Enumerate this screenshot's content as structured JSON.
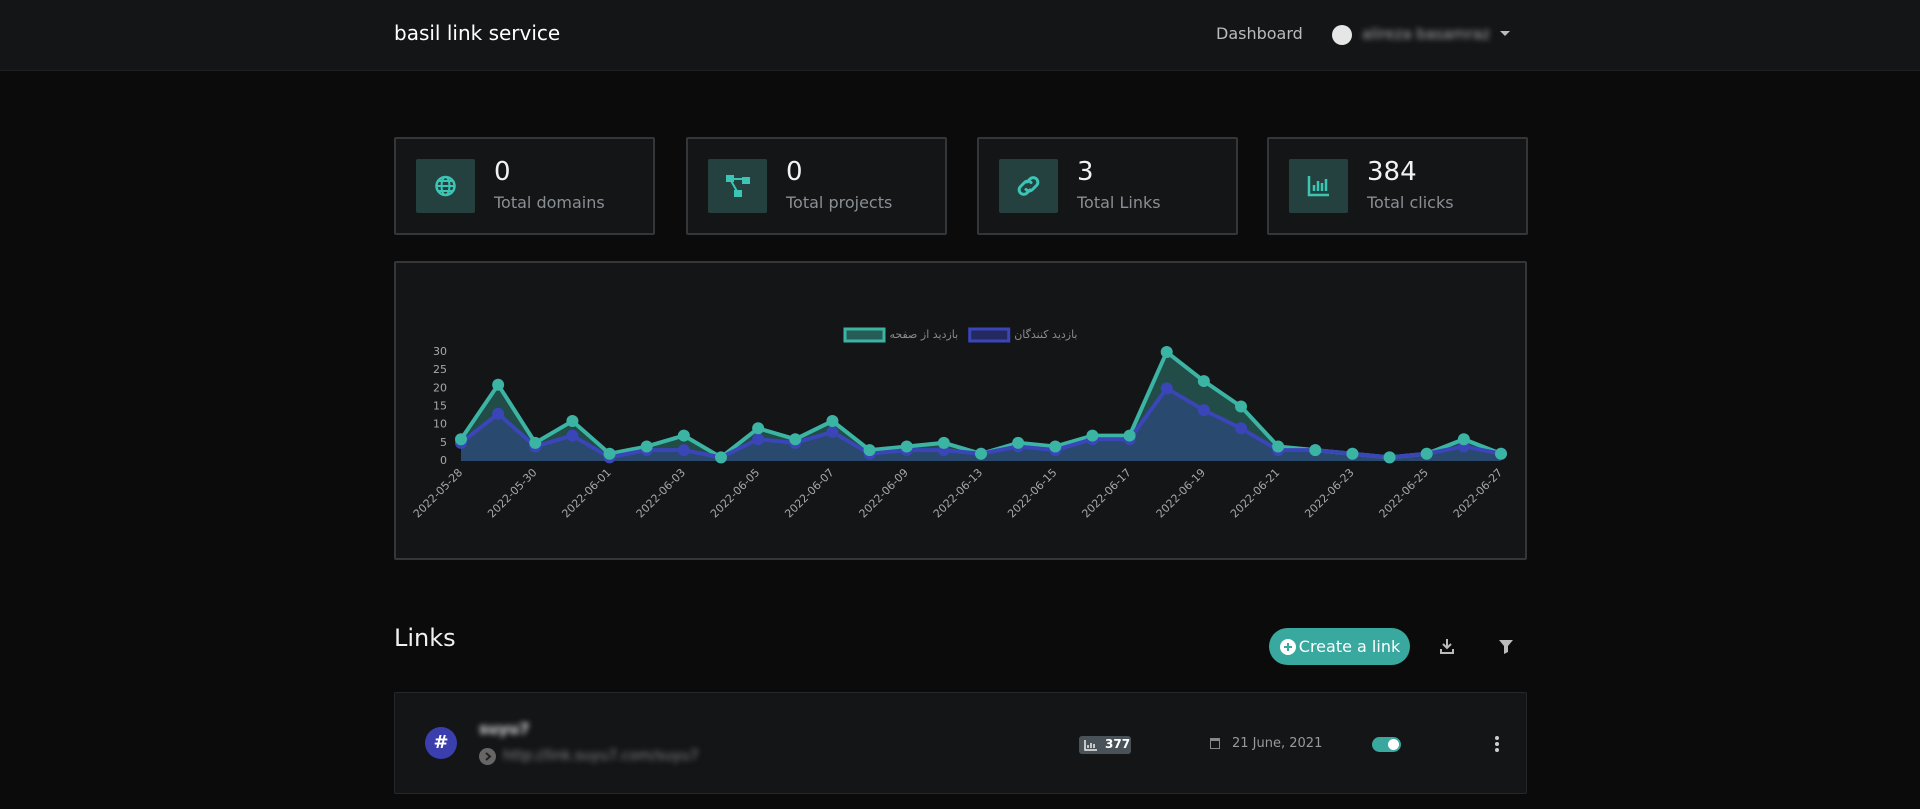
{
  "navbar": {
    "brand": "basil link service",
    "links": [
      "Dashboard"
    ],
    "user": "alireza basamraz"
  },
  "stats": [
    {
      "value": 0,
      "label": "Total domains"
    },
    {
      "value": 0,
      "label": "Total projects"
    },
    {
      "value": 3,
      "label": "Total Links"
    },
    {
      "value": 384,
      "label": "Total clicks"
    }
  ],
  "chart_data": {
    "type": "line",
    "categories": [
      "2022-05-28",
      null,
      "2022-05-30",
      null,
      "2022-06-01",
      null,
      "2022-06-03",
      null,
      "2022-06-05",
      null,
      "2022-06-07",
      null,
      "2022-06-09",
      null,
      "2022-06-13",
      null,
      "2022-06-15",
      null,
      "2022-06-17",
      null,
      "2022-06-19",
      null,
      "2022-06-21",
      null,
      "2022-06-23",
      null,
      "2022-06-25",
      null,
      "2022-06-27"
    ],
    "series": [
      {
        "name": "بازدید از صفحه",
        "color": "#3cb4a4",
        "values": [
          6,
          21,
          5,
          11,
          2,
          4,
          7,
          1,
          9,
          6,
          11,
          3,
          4,
          5,
          2,
          5,
          4,
          7,
          7,
          30,
          22,
          15,
          4,
          3,
          2,
          1,
          2,
          6,
          2
        ]
      },
      {
        "name": "بازدید کنندگان",
        "color": "#3a45b8",
        "values": [
          5,
          13,
          4,
          7,
          1,
          3,
          3,
          1,
          6,
          5,
          8,
          2,
          3,
          3,
          2,
          4,
          3,
          6,
          6,
          20,
          14,
          9,
          3,
          3,
          2,
          1,
          2,
          4,
          2
        ]
      }
    ],
    "ylim": [
      0,
      30
    ],
    "yticks": [
      0,
      5,
      10,
      15,
      20,
      25,
      30
    ],
    "grid": false,
    "legend": "top"
  },
  "links_section": {
    "title": "Links",
    "create_button": "Create a link",
    "items": [
      {
        "title": "suyu7",
        "url": "http://link.suyu7.com/suyu7",
        "clicks": 377,
        "date": "21 June, 2021"
      }
    ]
  }
}
